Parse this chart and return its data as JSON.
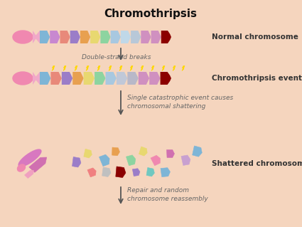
{
  "title": "Chromothripsis",
  "background_color": "#F5D5BE",
  "title_fontsize": 11,
  "title_fontweight": "bold",
  "seg_colors1": [
    "#7EB5D6",
    "#C888D0",
    "#E8897A",
    "#9B7DC8",
    "#E8A050",
    "#E8D870",
    "#8DD4A0",
    "#A8C8E0",
    "#C0D8E8",
    "#B8C8D8",
    "#D090C0",
    "#D090C0",
    "#8B0000"
  ],
  "seg_colors2": [
    "#7EB5D6",
    "#E8897A",
    "#9B7DC8",
    "#E8A050",
    "#E8D870",
    "#8DD4A0",
    "#A8C8E0",
    "#C0C8D8",
    "#B8B8C8",
    "#D090C0",
    "#D090C0",
    "#8B0000"
  ],
  "label_normal": "Normal chromosome",
  "label_event": "Chromothripsis event",
  "label_shattered": "Shattered chromosome",
  "label_dsb": "Double-strand breaks",
  "label_arrow2a": "Single catastrophic event causes",
  "label_arrow2b": "chromosomal shattering",
  "label_arrow3a": "Repair and random",
  "label_arrow3b": "chromosome reassembly",
  "frag_specs": [
    [
      55,
      230,
      "#D070B0",
      -40,
      28,
      10
    ],
    [
      42,
      244,
      "#F0A0C0",
      -40,
      14,
      6
    ],
    [
      108,
      228,
      "#9B7DC8",
      10,
      12,
      12
    ],
    [
      124,
      216,
      "#E8D870",
      15,
      11,
      10
    ],
    [
      148,
      225,
      "#7EB5D6",
      -20,
      13,
      13
    ],
    [
      163,
      213,
      "#E8A050",
      5,
      11,
      10
    ],
    [
      185,
      225,
      "#8DD4A0",
      -15,
      12,
      12
    ],
    [
      202,
      213,
      "#E8D870",
      20,
      11,
      10
    ],
    [
      220,
      225,
      "#F088B0",
      -25,
      12,
      11
    ],
    [
      240,
      216,
      "#D070B0",
      0,
      11,
      10
    ],
    [
      262,
      225,
      "#C8A0D0",
      -10,
      12,
      12
    ],
    [
      278,
      213,
      "#7EB5D6",
      15,
      13,
      12
    ],
    [
      130,
      242,
      "#F08080",
      -20,
      11,
      10
    ],
    [
      150,
      242,
      "#C0C0C0",
      10,
      12,
      11
    ],
    [
      170,
      242,
      "#8B0000",
      8,
      14,
      13
    ],
    [
      192,
      242,
      "#9B7DC8",
      -8,
      10,
      9
    ],
    [
      212,
      242,
      "#70C8C0",
      12,
      11,
      10
    ],
    [
      233,
      242,
      "#7EB5D6",
      -5,
      13,
      11
    ]
  ]
}
